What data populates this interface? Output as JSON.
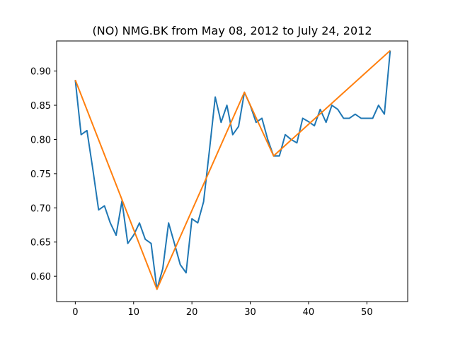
{
  "chart_data": {
    "type": "line",
    "title": "(NO) NMG.BK from May 08, 2012 to July 24, 2012",
    "xlabel": "",
    "ylabel": "",
    "xlim": [
      -3.2,
      57.0
    ],
    "ylim": [
      0.563,
      0.944
    ],
    "x_ticks": [
      0,
      10,
      20,
      30,
      40,
      50
    ],
    "x_tick_labels": [
      "0",
      "10",
      "20",
      "30",
      "40",
      "50"
    ],
    "y_ticks": [
      0.6,
      0.65,
      0.7,
      0.75,
      0.8,
      0.85,
      0.9
    ],
    "y_tick_labels": [
      "0.60",
      "0.65",
      "0.70",
      "0.75",
      "0.80",
      "0.85",
      "0.90"
    ],
    "grid": false,
    "series": [
      {
        "color": "#1f77b4",
        "x": [
          0,
          1,
          2,
          3,
          4,
          5,
          6,
          7,
          8,
          9,
          10,
          11,
          12,
          13,
          14,
          15,
          16,
          17,
          18,
          19,
          20,
          21,
          22,
          23,
          24,
          25,
          26,
          27,
          28,
          29,
          30,
          31,
          32,
          33,
          34,
          35,
          36,
          37,
          38,
          39,
          40,
          41,
          42,
          43,
          44,
          45,
          46,
          47,
          48,
          49,
          50,
          51,
          52,
          53,
          54
        ],
        "y": [
          0.887,
          0.807,
          0.813,
          0.757,
          0.697,
          0.703,
          0.678,
          0.66,
          0.71,
          0.648,
          0.66,
          0.678,
          0.654,
          0.648,
          0.581,
          0.611,
          0.678,
          0.648,
          0.617,
          0.605,
          0.684,
          0.678,
          0.709,
          0.784,
          0.862,
          0.825,
          0.85,
          0.807,
          0.819,
          0.869,
          0.85,
          0.825,
          0.831,
          0.8,
          0.776,
          0.776,
          0.807,
          0.8,
          0.795,
          0.831,
          0.826,
          0.82,
          0.844,
          0.825,
          0.85,
          0.844,
          0.831,
          0.831,
          0.837,
          0.831,
          0.831,
          0.831,
          0.85,
          0.837,
          0.93
        ]
      },
      {
        "color": "#ff7f0e",
        "x": [
          0,
          14,
          29,
          34,
          54
        ],
        "y": [
          0.887,
          0.581,
          0.869,
          0.776,
          0.93
        ]
      }
    ]
  }
}
